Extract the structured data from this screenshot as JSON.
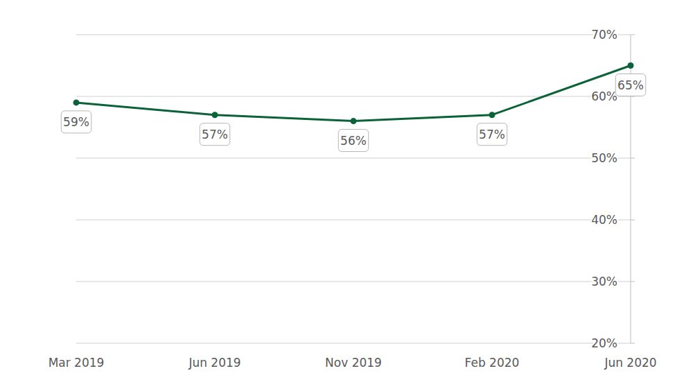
{
  "chart_data": {
    "type": "line",
    "categories": [
      "Mar 2019",
      "Jun 2019",
      "Nov 2019",
      "Feb 2020",
      "Jun 2020"
    ],
    "values": [
      59,
      57,
      56,
      57,
      65
    ],
    "value_labels": [
      "59%",
      "57%",
      "56%",
      "57%",
      "65%"
    ],
    "color": "#0b6138",
    "marker": "circle",
    "data_labels": true,
    "grid": true,
    "ylim": [
      20,
      70
    ],
    "yticks": [
      {
        "value": 20,
        "label": "20%"
      },
      {
        "value": 30,
        "label": "30%"
      },
      {
        "value": 40,
        "label": "40%"
      },
      {
        "value": 50,
        "label": "50%"
      },
      {
        "value": 60,
        "label": "60%"
      },
      {
        "value": 70,
        "label": "70%"
      }
    ]
  }
}
